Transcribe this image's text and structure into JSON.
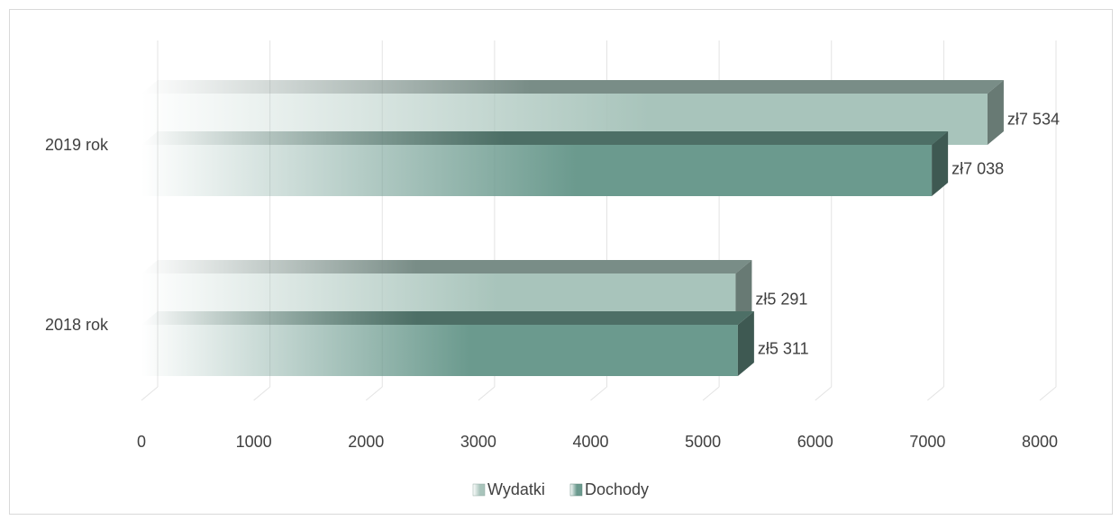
{
  "chart_data": {
    "type": "bar",
    "orientation": "horizontal",
    "categories": [
      "2019 rok",
      "2018 rok"
    ],
    "series": [
      {
        "name": "Wydatki",
        "values": [
          7534,
          5291
        ],
        "labels": [
          "zł7 534",
          "zł5 291"
        ],
        "color": "#a8c4bb"
      },
      {
        "name": "Dochody",
        "values": [
          7038,
          5311
        ],
        "labels": [
          "zł7 038",
          "zł5 311"
        ],
        "color": "#6b9a8e"
      }
    ],
    "x_ticks": [
      "0",
      "1000",
      "2000",
      "3000",
      "4000",
      "5000",
      "6000",
      "7000",
      "8000"
    ],
    "xlim": [
      0,
      8000
    ],
    "grid": true,
    "legend_position": "bottom",
    "style": "3d-bar-with-fade"
  }
}
